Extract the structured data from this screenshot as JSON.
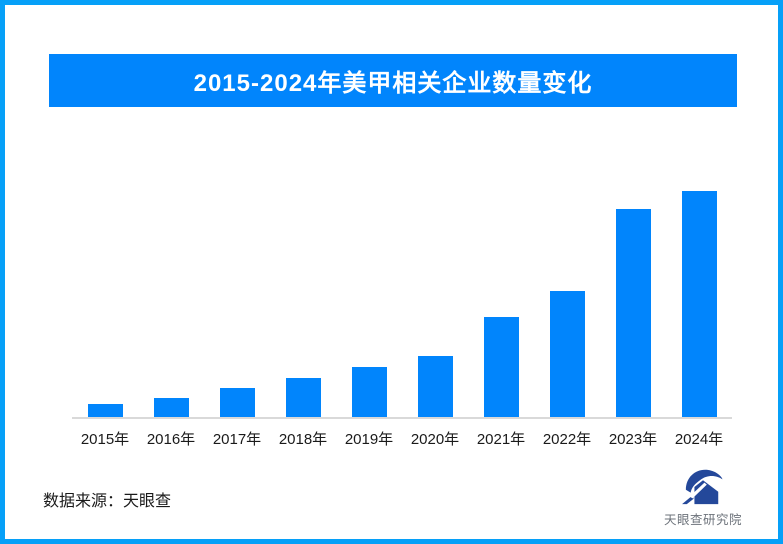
{
  "page": {
    "background": "#ffffff",
    "border_color": "#06a0f8"
  },
  "chart_data": {
    "type": "bar",
    "title": "2015-2024年美甲相关企业数量变化",
    "categories": [
      "2015年",
      "2016年",
      "2017年",
      "2018年",
      "2019年",
      "2020年",
      "2021年",
      "2022年",
      "2023年",
      "2024年"
    ],
    "values": [
      5.8,
      8.4,
      12.8,
      17.3,
      22.1,
      27.0,
      44.3,
      55.8,
      92.1,
      100
    ],
    "values_note": "no numeric y-axis shown in image; values are bar heights relative to 2024 bar = 100",
    "xlabel": "",
    "ylabel": "",
    "ylim": [
      0,
      100
    ],
    "gridlines": false,
    "legend": "none",
    "bar_color": "#0185fc",
    "axis_line_color": "#d9d9d9"
  },
  "footer": {
    "source": "数据来源：天眼查",
    "logo_text": "天眼查研究院",
    "logo_color": "#24489a"
  },
  "colors": {
    "accent_blue": "#0185fc",
    "border_blue": "#06a0f8",
    "axis_gray": "#d9d9d9",
    "text_black": "#1a1a1a",
    "logo_navy": "#24489a",
    "logo_text_gray": "#6d737b"
  }
}
